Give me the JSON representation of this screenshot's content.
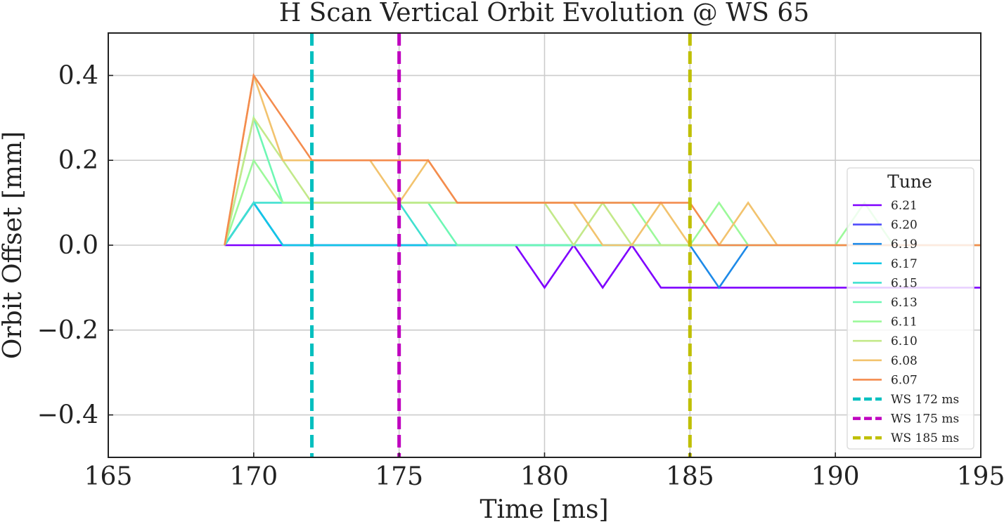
{
  "chart_data": {
    "type": "line",
    "title": "H Scan Vertical Orbit Evolution @ WS 65",
    "xlabel": "Time [ms]",
    "ylabel": "Orbit Offset [mm]",
    "xlim": [
      165,
      195
    ],
    "ylim": [
      -0.5,
      0.5
    ],
    "xticks": [
      165,
      170,
      175,
      180,
      185,
      190,
      195
    ],
    "xtick_labels": [
      "165",
      "170",
      "175",
      "180",
      "185",
      "190",
      "195"
    ],
    "yticks": [
      -0.4,
      -0.2,
      0.0,
      0.2,
      0.4
    ],
    "ytick_labels": [
      "−0.4",
      "−0.2",
      "0.0",
      "0.2",
      "0.4"
    ],
    "grid": true,
    "legend": {
      "title": "Tune",
      "placement": "right"
    },
    "series": [
      {
        "name": "6.21",
        "color": "#7f00ff",
        "x": [
          169,
          170,
          171,
          172,
          173,
          174,
          175,
          176,
          177,
          178,
          179,
          180,
          181,
          182,
          183,
          184,
          185,
          186,
          187,
          188,
          189,
          190,
          191,
          192,
          193,
          194,
          195
        ],
        "y": [
          0,
          0,
          0,
          0,
          0,
          0,
          0,
          0,
          0,
          0,
          0,
          -0.1,
          0,
          -0.1,
          0,
          -0.1,
          -0.1,
          -0.1,
          -0.1,
          -0.1,
          -0.1,
          -0.1,
          -0.1,
          -0.1,
          -0.1,
          -0.1,
          -0.1
        ]
      },
      {
        "name": "6.20",
        "color": "#4f4cfb",
        "x": [
          169,
          170,
          171,
          172,
          173,
          174,
          175,
          176,
          177,
          178,
          179,
          180,
          181,
          182,
          183,
          184,
          185,
          186,
          187,
          188,
          189,
          190,
          191,
          192,
          193,
          194,
          195
        ],
        "y": [
          0,
          0.1,
          0,
          0,
          0,
          0,
          0,
          0,
          0,
          0,
          0,
          0,
          0,
          0,
          0,
          0,
          0,
          0,
          0,
          0,
          0,
          0,
          0,
          0,
          0,
          0,
          0
        ]
      },
      {
        "name": "6.19",
        "color": "#1e8ae8",
        "x": [
          169,
          170,
          171,
          172,
          173,
          174,
          175,
          176,
          177,
          178,
          179,
          180,
          181,
          182,
          183,
          184,
          185,
          186,
          187,
          188,
          189,
          190,
          191,
          192,
          193,
          194,
          195
        ],
        "y": [
          0,
          0.1,
          0,
          0,
          0,
          0,
          0,
          0,
          0,
          0,
          0,
          0,
          0,
          0,
          0,
          0,
          0,
          -0.1,
          0,
          0,
          0,
          0,
          0,
          0,
          0,
          0,
          0
        ]
      },
      {
        "name": "6.17",
        "color": "#12c8e6",
        "x": [
          169,
          170,
          171,
          172,
          173,
          174,
          175,
          176,
          177,
          178,
          179,
          180,
          181,
          182,
          183,
          184,
          185,
          186,
          187,
          188,
          189,
          190,
          191,
          192,
          193,
          194,
          195
        ],
        "y": [
          0,
          0.1,
          0,
          0,
          0,
          0,
          0,
          0,
          0,
          0,
          0,
          0,
          0,
          0,
          0,
          0,
          0,
          0,
          0,
          0,
          0,
          0,
          0,
          0,
          0,
          0,
          0
        ]
      },
      {
        "name": "6.15",
        "color": "#40e0d0",
        "x": [
          169,
          170,
          171,
          172,
          173,
          174,
          175,
          176,
          177,
          178,
          179,
          180,
          181,
          182,
          183,
          184,
          185,
          186,
          187,
          188,
          189,
          190,
          191,
          192,
          193,
          194,
          195
        ],
        "y": [
          0,
          0.1,
          0.1,
          0.1,
          0.1,
          0.1,
          0.1,
          0,
          0,
          0,
          0,
          0,
          0,
          0,
          0,
          0,
          0,
          0,
          0,
          0,
          0,
          0,
          0,
          0,
          0,
          0,
          0
        ]
      },
      {
        "name": "6.13",
        "color": "#6ef7b4",
        "x": [
          169,
          170,
          171,
          172,
          173,
          174,
          175,
          176,
          177,
          178,
          179,
          180,
          181,
          182,
          183,
          184,
          185,
          186,
          187,
          188,
          189,
          190,
          191,
          192,
          193,
          194,
          195
        ],
        "y": [
          0,
          0.3,
          0.1,
          0.1,
          0.1,
          0.1,
          0.1,
          0.1,
          0,
          0,
          0,
          0,
          0,
          0,
          0,
          0,
          0,
          0,
          0,
          0,
          0,
          0,
          0,
          0,
          0,
          0,
          0
        ]
      },
      {
        "name": "6.11",
        "color": "#9cf99a",
        "x": [
          169,
          170,
          171,
          172,
          173,
          174,
          175,
          176,
          177,
          178,
          179,
          180,
          181,
          182,
          183,
          184,
          185,
          186,
          187,
          188,
          189,
          190,
          191,
          192,
          193,
          194,
          195
        ],
        "y": [
          0,
          0.2,
          0.1,
          0.1,
          0.1,
          0.1,
          0.1,
          0.1,
          0.1,
          0.1,
          0.1,
          0.1,
          0.1,
          0.1,
          0.1,
          0,
          0,
          0.1,
          0,
          0,
          0,
          0,
          0.1,
          0,
          0,
          0,
          0
        ]
      },
      {
        "name": "6.10",
        "color": "#c3e98a",
        "x": [
          169,
          170,
          171,
          172,
          173,
          174,
          175,
          176,
          177,
          178,
          179,
          180,
          181,
          182,
          183,
          184,
          185,
          186,
          187,
          188,
          189,
          190,
          191,
          192,
          193,
          194,
          195
        ],
        "y": [
          0,
          0.3,
          0.2,
          0.1,
          0.1,
          0.1,
          0.1,
          0.1,
          0.1,
          0.1,
          0.1,
          0.1,
          0,
          0.1,
          0,
          0,
          0,
          0,
          0,
          0,
          0,
          0,
          0,
          0,
          0,
          0,
          0
        ]
      },
      {
        "name": "6.08",
        "color": "#f2c36e",
        "x": [
          169,
          170,
          171,
          172,
          173,
          174,
          175,
          176,
          177,
          178,
          179,
          180,
          181,
          182,
          183,
          184,
          185,
          186,
          187,
          188,
          189,
          190,
          191,
          192,
          193,
          194,
          195
        ],
        "y": [
          0,
          0.4,
          0.2,
          0.2,
          0.2,
          0.2,
          0.1,
          0.2,
          0.1,
          0.1,
          0.1,
          0.1,
          0.1,
          0,
          0,
          0.1,
          0,
          0,
          0.1,
          0,
          0,
          0,
          0,
          0,
          0,
          0,
          0
        ]
      },
      {
        "name": "6.07",
        "color": "#f48c4e",
        "x": [
          169,
          170,
          171,
          172,
          173,
          174,
          175,
          176,
          177,
          178,
          179,
          180,
          181,
          182,
          183,
          184,
          185,
          186,
          187,
          188,
          189,
          190,
          191,
          192,
          193,
          194,
          195
        ],
        "y": [
          0,
          0.4,
          0.3,
          0.2,
          0.2,
          0.2,
          0.2,
          0.2,
          0.1,
          0.1,
          0.1,
          0.1,
          0.1,
          0.1,
          0.1,
          0.1,
          0.1,
          0,
          0,
          0,
          0,
          0,
          0,
          0,
          0,
          0,
          0
        ]
      }
    ],
    "vlines": [
      {
        "name": "WS 172 ms",
        "x": 172,
        "color": "#00bfbf"
      },
      {
        "name": "WS 175 ms",
        "x": 175,
        "color": "#bf00bf"
      },
      {
        "name": "WS 185 ms",
        "x": 185,
        "color": "#bfbf00"
      }
    ]
  }
}
